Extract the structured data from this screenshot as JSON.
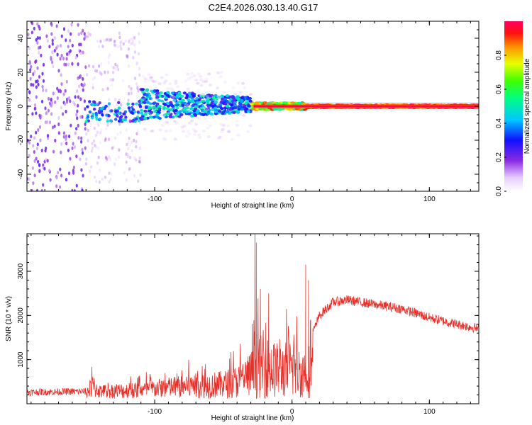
{
  "title": "C2E4.2026.030.13.40.G17",
  "chart_data": [
    {
      "type": "heatmap",
      "xlabel": "Height of straight line (km)",
      "ylabel": "Frequency (Hz)",
      "xlim": [
        -193,
        136
      ],
      "ylim": [
        -50,
        50
      ],
      "xticks": [
        -100,
        0,
        100
      ],
      "yticks": [
        -40,
        -20,
        0,
        20,
        40
      ],
      "colorbar": {
        "label": "Normalized spectral amplitude",
        "range": [
          0,
          1
        ],
        "ticks": [
          "0.0",
          "0.2",
          "0.4",
          "0.6",
          "0.8"
        ]
      },
      "description_regions": [
        {
          "x_range": [
            -193,
            -150
          ],
          "spread_hz": 50,
          "amplitude": 0.15
        },
        {
          "x_range": [
            -150,
            -30
          ],
          "spread_hz": 8,
          "amplitude": 0.35
        },
        {
          "x_range": [
            -30,
            136
          ],
          "spread_hz": 1.5,
          "amplitude": 0.95
        }
      ]
    },
    {
      "type": "line",
      "xlabel": "Height of straight line (km)",
      "ylabel": "SNR (10 * v/v)",
      "xlim": [
        -193,
        136
      ],
      "ylim": [
        0,
        3850
      ],
      "xticks": [
        -100,
        0,
        100
      ],
      "yticks": [
        1000,
        2000,
        3000
      ],
      "color": "#e8302a",
      "series_envelope": [
        {
          "x": -193,
          "y": 260
        },
        {
          "x": -150,
          "y": 280
        },
        {
          "x": -145,
          "y": 600
        },
        {
          "x": -140,
          "y": 350
        },
        {
          "x": -110,
          "y": 420
        },
        {
          "x": -80,
          "y": 600
        },
        {
          "x": -50,
          "y": 700
        },
        {
          "x": -40,
          "y": 850
        },
        {
          "x": -30,
          "y": 1200
        },
        {
          "x": -25,
          "y": 1600
        },
        {
          "x": -20,
          "y": 1600
        },
        {
          "x": -10,
          "y": 1400
        },
        {
          "x": 0,
          "y": 1500
        },
        {
          "x": 10,
          "y": 1200
        },
        {
          "x": 20,
          "y": 2000
        },
        {
          "x": 30,
          "y": 2300
        },
        {
          "x": 40,
          "y": 2350
        },
        {
          "x": 60,
          "y": 2250
        },
        {
          "x": 80,
          "y": 2150
        },
        {
          "x": 100,
          "y": 1950
        },
        {
          "x": 120,
          "y": 1800
        },
        {
          "x": 136,
          "y": 1700
        }
      ],
      "spikes": [
        {
          "x": -27,
          "y": 3850
        },
        {
          "x": -26,
          "y": 3650
        },
        {
          "x": -23,
          "y": 2600
        },
        {
          "x": -17,
          "y": 2500
        },
        {
          "x": 10,
          "y": 3150
        },
        {
          "x": 12,
          "y": 2800
        },
        {
          "x": 10,
          "y": 550
        }
      ]
    }
  ]
}
